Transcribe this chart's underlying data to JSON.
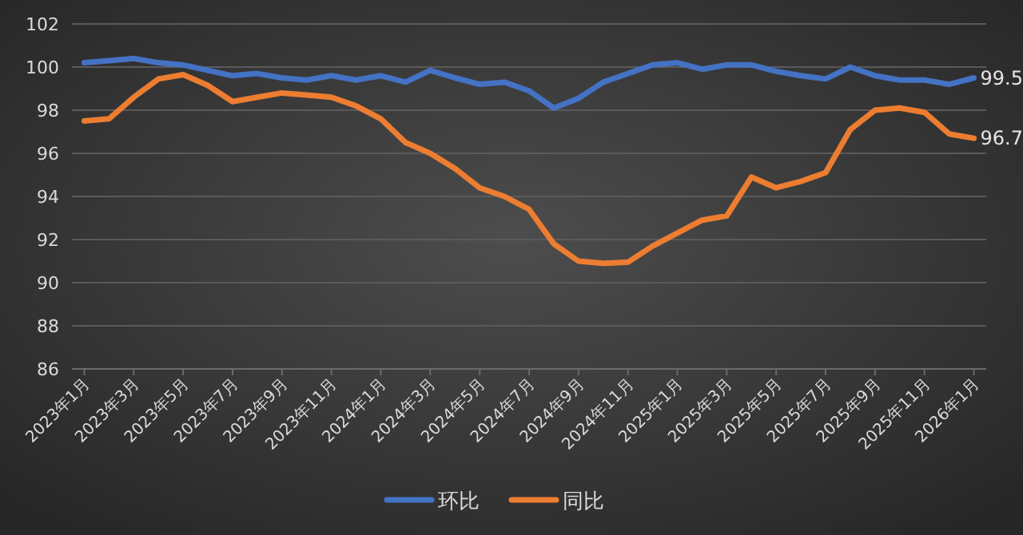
{
  "chart_data": {
    "type": "line",
    "categories": [
      "2023年1月",
      null,
      "2023年3月",
      null,
      "2023年5月",
      null,
      "2023年7月",
      null,
      "2023年9月",
      null,
      "2023年11月",
      null,
      "2024年1月",
      null,
      "2024年3月",
      null,
      "2024年5月",
      null,
      "2024年7月",
      null,
      "2024年9月",
      null,
      "2024年11月",
      null,
      "2025年1月",
      null,
      "2025年3月",
      null,
      "2025年5月",
      null,
      "2025年7月",
      null,
      "2025年9月",
      null,
      "2025年11月",
      null,
      "2026年1月"
    ],
    "series": [
      {
        "name": "环比",
        "color": "#4472c4",
        "values": [
          100.2,
          100.3,
          100.4,
          100.2,
          100.1,
          99.85,
          99.6,
          99.7,
          99.5,
          99.4,
          99.6,
          99.4,
          99.6,
          99.3,
          99.85,
          99.5,
          99.2,
          99.3,
          98.9,
          98.1,
          98.55,
          99.3,
          99.7,
          100.1,
          100.2,
          99.9,
          100.1,
          100.1,
          99.8,
          99.6,
          99.45,
          100.0,
          99.6,
          99.4,
          99.4,
          99.2,
          99.5
        ],
        "value_labels": [
          null,
          null,
          null,
          null,
          null,
          null,
          null,
          null,
          null,
          null,
          null,
          null,
          null,
          null,
          null,
          null,
          null,
          null,
          null,
          null,
          null,
          null,
          null,
          null,
          null,
          null,
          null,
          null,
          null,
          null,
          null,
          null,
          null,
          null,
          null,
          null,
          "99.5"
        ]
      },
      {
        "name": "同比",
        "color": "#ed7d31",
        "values": [
          97.5,
          97.6,
          98.6,
          99.45,
          99.65,
          99.15,
          98.4,
          98.6,
          98.8,
          98.7,
          98.6,
          98.2,
          97.6,
          96.5,
          96.0,
          95.3,
          94.4,
          94.0,
          93.4,
          91.8,
          91.0,
          90.9,
          90.95,
          91.7,
          92.3,
          92.9,
          93.1,
          94.9,
          94.4,
          94.7,
          95.1,
          97.1,
          98.0,
          98.1,
          97.9,
          96.9,
          96.7
        ],
        "value_labels": [
          null,
          null,
          null,
          null,
          null,
          null,
          null,
          null,
          null,
          null,
          null,
          null,
          null,
          null,
          null,
          null,
          null,
          null,
          null,
          null,
          null,
          null,
          null,
          null,
          null,
          null,
          null,
          null,
          null,
          null,
          null,
          null,
          null,
          null,
          null,
          null,
          "96.7"
        ]
      }
    ],
    "ylim": [
      86,
      102
    ],
    "yticks": [
      86,
      88,
      90,
      92,
      94,
      96,
      98,
      100,
      102
    ],
    "grid": "y",
    "legend": "bottom",
    "marker": "none",
    "line_style": "solid"
  }
}
